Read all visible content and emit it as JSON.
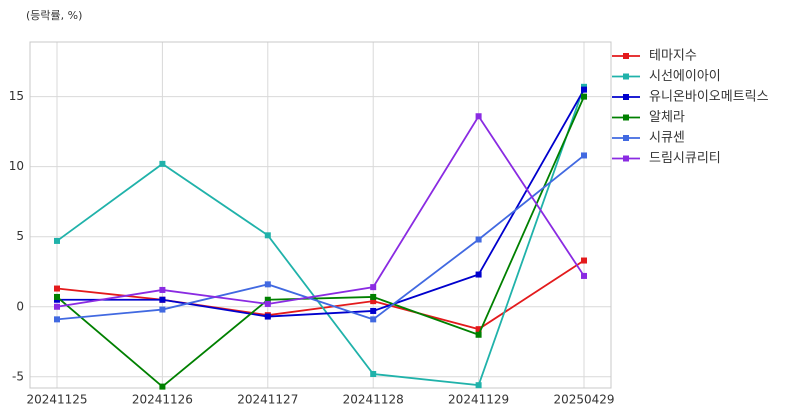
{
  "chart_data": {
    "type": "line",
    "y_label": "(등락률, %)",
    "categories": [
      "20241125",
      "20241126",
      "20241127",
      "20241128",
      "20241129",
      "20250429"
    ],
    "series": [
      {
        "name": "테마지수",
        "color": "#e31a1c",
        "values": [
          1.3,
          0.5,
          -0.6,
          0.4,
          -1.6,
          3.3
        ]
      },
      {
        "name": "시선에이아이",
        "color": "#20b2aa",
        "values": [
          4.7,
          10.2,
          5.1,
          -4.8,
          -5.6,
          15.7
        ]
      },
      {
        "name": "유니온바이오메트릭스",
        "color": "#0000cd",
        "values": [
          0.5,
          0.5,
          -0.7,
          -0.3,
          2.3,
          15.5
        ]
      },
      {
        "name": "알체라",
        "color": "#008000",
        "values": [
          0.7,
          -5.7,
          0.5,
          0.7,
          -2.0,
          15.0
        ]
      },
      {
        "name": "시큐센",
        "color": "#4169e1",
        "values": [
          -0.9,
          -0.2,
          1.6,
          -0.9,
          4.8,
          10.8
        ]
      },
      {
        "name": "드림시큐리티",
        "color": "#8a2be2",
        "values": [
          0.0,
          1.2,
          0.2,
          1.4,
          13.6,
          2.2
        ]
      }
    ],
    "ylim": [
      -5.8,
      18.9
    ],
    "yticks": [
      -5,
      0,
      5,
      10,
      15
    ],
    "grid": true,
    "legend": "right"
  }
}
